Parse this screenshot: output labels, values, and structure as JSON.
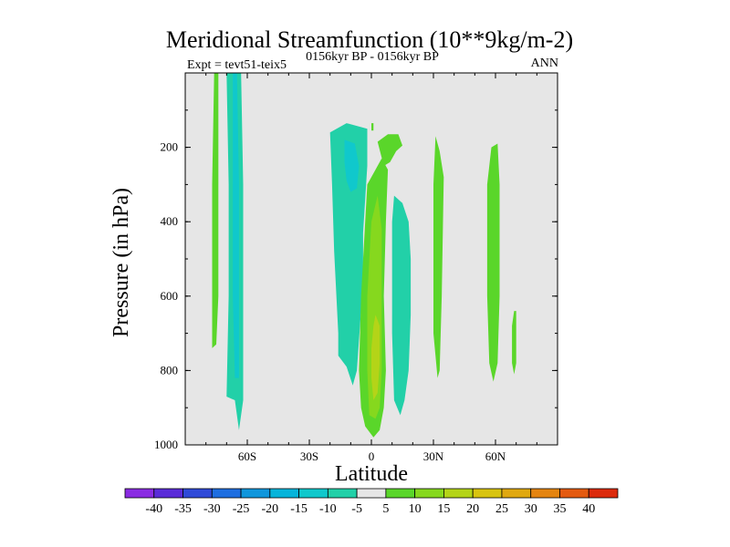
{
  "chart_data": {
    "type": "heatmap",
    "title": "Meridional Streamfunction (10**9kg/m-2)",
    "subtitle_left": "Expt = tevt51-teix5",
    "subtitle_center": "0156kyr BP - 0156kyr BP",
    "subtitle_right": "ANN",
    "xlabel": "Latitude",
    "ylabel": "Pressure (in hPa)",
    "xlim": [
      -90,
      90
    ],
    "ylim": [
      1000,
      0
    ],
    "x_ticks": [
      {
        "value": -60,
        "label": "60S"
      },
      {
        "value": -30,
        "label": "30S"
      },
      {
        "value": 0,
        "label": "0"
      },
      {
        "value": 30,
        "label": "30N"
      },
      {
        "value": 60,
        "label": "60N"
      }
    ],
    "y_ticks": [
      {
        "value": 200,
        "label": "200"
      },
      {
        "value": 400,
        "label": "400"
      },
      {
        "value": 600,
        "label": "600"
      },
      {
        "value": 800,
        "label": "800"
      },
      {
        "value": 1000,
        "label": "1000"
      }
    ],
    "colorbar": {
      "levels": [
        -40,
        -35,
        -30,
        -25,
        -20,
        -15,
        -10,
        -5,
        5,
        10,
        15,
        20,
        25,
        30,
        35,
        40
      ],
      "level_labels": [
        "-40",
        "-35",
        "-30",
        "-25",
        "-20",
        "-15",
        "-10",
        "-5",
        "5",
        "10",
        "15",
        "20",
        "25",
        "30",
        "35",
        "40"
      ],
      "colors": [
        "#8a2be2",
        "#5a2bd8",
        "#2f4ad8",
        "#1e6ee0",
        "#1096dc",
        "#06b4da",
        "#10c8cc",
        "#22d0a8",
        "#e6e6e6",
        "#5ad62a",
        "#86d81e",
        "#b4d418",
        "#d8c410",
        "#e0a810",
        "#e48410",
        "#e45a10",
        "#dc2a0c"
      ]
    },
    "background_color": "#e6e6e6",
    "regions": [
      {
        "name": "sh-polar-positive",
        "value": 7,
        "points": [
          [
            -76,
            0
          ],
          [
            -74,
            0
          ],
          [
            -74,
            300
          ],
          [
            -74,
            600
          ],
          [
            -75,
            730
          ],
          [
            -77,
            740
          ],
          [
            -77,
            600
          ],
          [
            -77,
            300
          ]
        ]
      },
      {
        "name": "sh-midlat-negative",
        "value": -8,
        "points": [
          [
            -70,
            0
          ],
          [
            -63,
            0
          ],
          [
            -62,
            300
          ],
          [
            -62,
            600
          ],
          [
            -62,
            880
          ],
          [
            -64,
            960
          ],
          [
            -66,
            880
          ],
          [
            -70,
            870
          ],
          [
            -69,
            600
          ],
          [
            -69,
            300
          ]
        ]
      },
      {
        "name": "sh-midlat-core",
        "value": -12,
        "points": [
          [
            -67,
            0
          ],
          [
            -65,
            0
          ],
          [
            -64,
            300
          ],
          [
            -64,
            600
          ],
          [
            -64,
            820
          ],
          [
            -66,
            820
          ],
          [
            -67,
            600
          ]
        ]
      },
      {
        "name": "sh-subtropic-negative",
        "value": -7,
        "points": [
          [
            -20,
            160
          ],
          [
            -12,
            135
          ],
          [
            -2,
            150
          ],
          [
            -2,
            250
          ],
          [
            -4,
            430
          ],
          [
            -4,
            560
          ],
          [
            -7,
            800
          ],
          [
            -9,
            840
          ],
          [
            -12,
            790
          ],
          [
            -16,
            760
          ],
          [
            -16,
            700
          ],
          [
            -18,
            480
          ],
          [
            -19,
            300
          ]
        ]
      },
      {
        "name": "sh-subtropic-core",
        "value": -13,
        "points": [
          [
            -13,
            180
          ],
          [
            -8,
            190
          ],
          [
            -6,
            250
          ],
          [
            -7,
            310
          ],
          [
            -10,
            320
          ],
          [
            -12,
            290
          ],
          [
            -13,
            240
          ]
        ]
      },
      {
        "name": "eq-small-positive",
        "value": 6,
        "points": [
          [
            0,
            135
          ],
          [
            1,
            135
          ],
          [
            1,
            155
          ],
          [
            0,
            155
          ]
        ]
      },
      {
        "name": "eq-upper-positive",
        "value": 7,
        "points": [
          [
            3,
            185
          ],
          [
            8,
            165
          ],
          [
            13,
            165
          ],
          [
            15,
            195
          ],
          [
            12,
            210
          ],
          [
            9,
            240
          ],
          [
            6,
            250
          ]
        ]
      },
      {
        "name": "eq-main-positive",
        "value": 8,
        "points": [
          [
            -2,
            300
          ],
          [
            2,
            260
          ],
          [
            5,
            230
          ],
          [
            8,
            260
          ],
          [
            7,
            400
          ],
          [
            6,
            600
          ],
          [
            7,
            800
          ],
          [
            6,
            900
          ],
          [
            4,
            960
          ],
          [
            1,
            980
          ],
          [
            -3,
            950
          ],
          [
            -5,
            900
          ],
          [
            -6,
            800
          ],
          [
            -5,
            600
          ],
          [
            -3,
            400
          ]
        ]
      },
      {
        "name": "eq-main-mid",
        "value": 13,
        "points": [
          [
            0,
            400
          ],
          [
            3,
            330
          ],
          [
            5,
            420
          ],
          [
            5,
            600
          ],
          [
            5,
            800
          ],
          [
            4,
            900
          ],
          [
            2,
            930
          ],
          [
            -1,
            920
          ],
          [
            -2,
            800
          ],
          [
            -2,
            600
          ]
        ]
      },
      {
        "name": "eq-main-core",
        "value": 18,
        "points": [
          [
            2,
            650
          ],
          [
            4,
            680
          ],
          [
            4,
            780
          ],
          [
            3,
            860
          ],
          [
            1,
            880
          ],
          [
            0,
            820
          ],
          [
            0,
            740
          ],
          [
            1,
            680
          ]
        ]
      },
      {
        "name": "nh-subtropic-negative",
        "value": -7,
        "points": [
          [
            11,
            330
          ],
          [
            15,
            350
          ],
          [
            18,
            400
          ],
          [
            19,
            500
          ],
          [
            19,
            650
          ],
          [
            18,
            800
          ],
          [
            16,
            880
          ],
          [
            14,
            920
          ],
          [
            11,
            880
          ],
          [
            10,
            700
          ],
          [
            10,
            500
          ],
          [
            10,
            400
          ]
        ]
      },
      {
        "name": "nh-30-positive",
        "value": 6,
        "points": [
          [
            31,
            170
          ],
          [
            33,
            210
          ],
          [
            35,
            280
          ],
          [
            34,
            600
          ],
          [
            33,
            800
          ],
          [
            32,
            820
          ],
          [
            30,
            700
          ],
          [
            30,
            500
          ],
          [
            30,
            300
          ]
        ]
      },
      {
        "name": "nh-60-positive",
        "value": 6,
        "points": [
          [
            58,
            200
          ],
          [
            61,
            190
          ],
          [
            62,
            300
          ],
          [
            62,
            600
          ],
          [
            61,
            780
          ],
          [
            59,
            830
          ],
          [
            57,
            780
          ],
          [
            56,
            600
          ],
          [
            56,
            300
          ]
        ]
      },
      {
        "name": "nh-polar-positive",
        "value": 6,
        "points": [
          [
            69,
            640
          ],
          [
            70,
            640
          ],
          [
            70,
            780
          ],
          [
            69,
            810
          ],
          [
            68,
            780
          ],
          [
            68,
            680
          ]
        ]
      }
    ]
  }
}
